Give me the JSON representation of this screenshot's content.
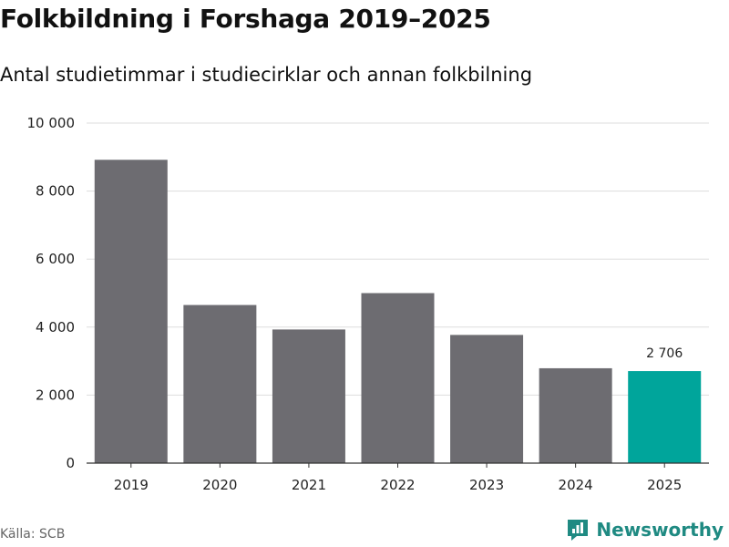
{
  "title": "Folkbildning i Forshaga 2019–2025",
  "subtitle": "Antal studietimmar i studiecirklar och annan folkbilning",
  "source": "Källa: SCB",
  "brand": {
    "name": "Newsworthy",
    "icon": "newsworthy-logo-icon",
    "color": "#1f8a82"
  },
  "colors": {
    "bar": "#6d6c71",
    "highlight": "#00a59b",
    "grid": "#dddddd",
    "axis": "#333333"
  },
  "chart_data": {
    "type": "bar",
    "title": "Folkbildning i Forshaga 2019–2025",
    "subtitle": "Antal studietimmar i studiecirklar och annan folkbilning",
    "xlabel": "",
    "ylabel": "",
    "categories": [
      "2019",
      "2020",
      "2021",
      "2022",
      "2023",
      "2024",
      "2025"
    ],
    "values": [
      8920,
      4650,
      3930,
      5000,
      3770,
      2790,
      2706
    ],
    "highlight_index": 6,
    "data_labels": [
      {
        "category": "2025",
        "text": "2 706"
      }
    ],
    "ylim": [
      0,
      10000
    ],
    "yticks": [
      0,
      2000,
      4000,
      6000,
      8000,
      10000
    ],
    "ytick_labels": [
      "0",
      "2 000",
      "4 000",
      "6 000",
      "8 000",
      "10 000"
    ],
    "grid": true,
    "legend": "none"
  }
}
